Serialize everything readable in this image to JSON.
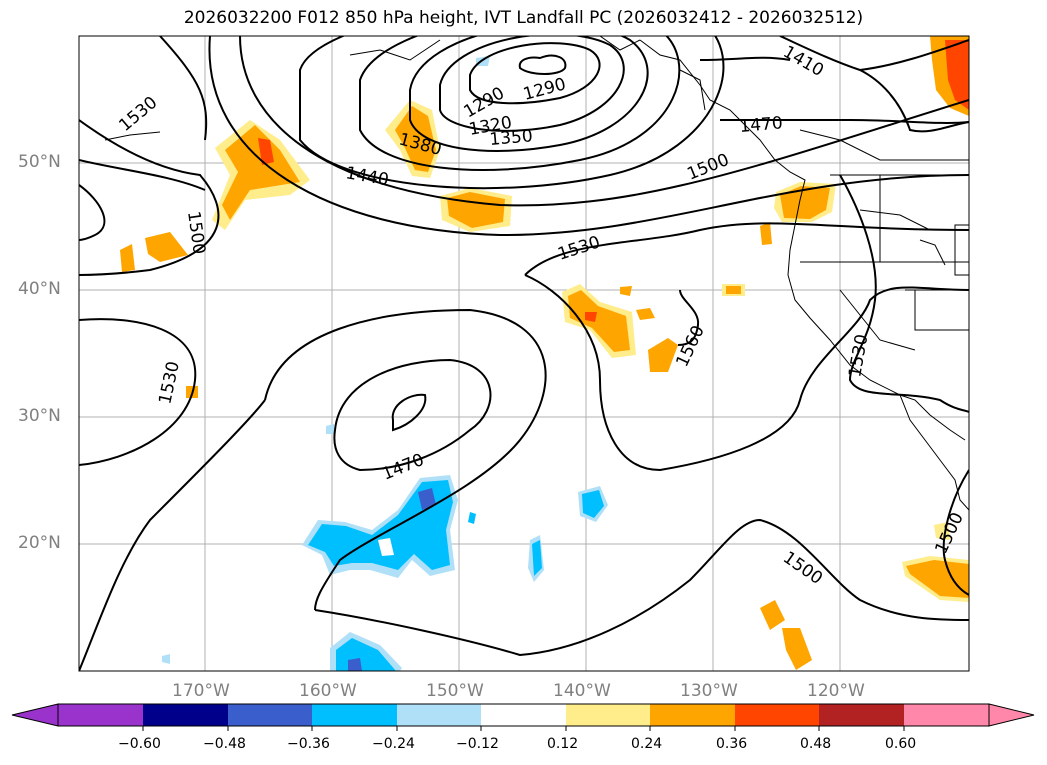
{
  "title": "2026032200 F012 850 hPa height, IVT Landfall PC (2026032412 - 2026032512)",
  "latitude_labels": [
    "50°N",
    "40°N",
    "30°N",
    "20°N"
  ],
  "longitude_labels": [
    "170°W",
    "160°W",
    "150°W",
    "140°W",
    "130°W",
    "120°W"
  ],
  "contour_labels": [
    "1530",
    "1530",
    "1530",
    "1500",
    "1500",
    "1500",
    "1500",
    "1470",
    "1470",
    "1440",
    "1380",
    "1350",
    "1320",
    "1290",
    "1290",
    "1410",
    "1560",
    "1530"
  ],
  "colorbar": {
    "ticks": [
      "−0.60",
      "−0.48",
      "−0.36",
      "−0.24",
      "−0.12",
      "0.12",
      "0.24",
      "0.36",
      "0.48",
      "0.60"
    ],
    "colors": [
      "#9933cc",
      "#00008b",
      "#3a5fcd",
      "#00bfff",
      "#b0e0f8",
      "#ffffff",
      "#ffec8b",
      "#ffa500",
      "#ff4500",
      "#b22222",
      "#ff88aa"
    ]
  }
}
